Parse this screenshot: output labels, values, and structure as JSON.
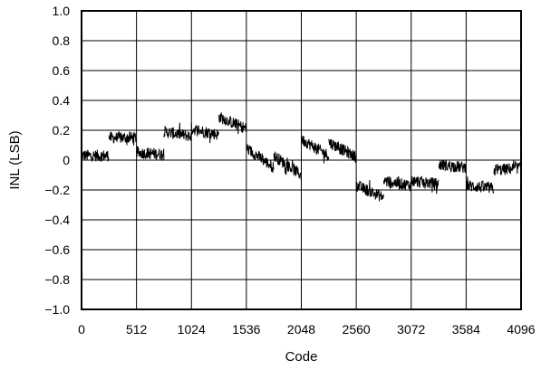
{
  "chart_data": {
    "type": "line",
    "xlabel": "Code",
    "ylabel": "INL (LSB)",
    "xlim": [
      0,
      4096
    ],
    "ylim": [
      -1.0,
      1.0
    ],
    "x_ticks": [
      0,
      512,
      1024,
      1536,
      2048,
      2560,
      3072,
      3584,
      4096
    ],
    "x_tick_labels": [
      "0",
      "512",
      "1024",
      "1536",
      "2048",
      "2560",
      "3072",
      "3584",
      "4096"
    ],
    "y_ticks": [
      1.0,
      0.8,
      0.6,
      0.4,
      0.2,
      0,
      -0.2,
      -0.4,
      -0.6,
      -0.8,
      -1.0
    ],
    "y_tick_labels": [
      "1.0",
      "0.8",
      "0.6",
      "0.4",
      "0.2",
      "0",
      "−0.2",
      "−0.4",
      "−0.6",
      "−0.8",
      "−1.0"
    ],
    "grid": true,
    "line_color": "#000000",
    "noise_amplitude": 0.04,
    "segments": [
      {
        "x0": 0,
        "x1": 256,
        "y0": 0.03,
        "y1": 0.03
      },
      {
        "x0": 256,
        "x1": 512,
        "y0": 0.15,
        "y1": 0.15
      },
      {
        "x0": 512,
        "x1": 768,
        "y0": 0.05,
        "y1": 0.04
      },
      {
        "x0": 768,
        "x1": 1024,
        "y0": 0.19,
        "y1": 0.16
      },
      {
        "x0": 1024,
        "x1": 1280,
        "y0": 0.21,
        "y1": 0.17
      },
      {
        "x0": 1280,
        "x1": 1536,
        "y0": 0.29,
        "y1": 0.21
      },
      {
        "x0": 1536,
        "x1": 1792,
        "y0": 0.08,
        "y1": -0.05
      },
      {
        "x0": 1792,
        "x1": 2048,
        "y0": 0.03,
        "y1": -0.1
      },
      {
        "x0": 2048,
        "x1": 2304,
        "y0": 0.14,
        "y1": 0.03
      },
      {
        "x0": 2304,
        "x1": 2560,
        "y0": 0.12,
        "y1": 0.02
      },
      {
        "x0": 2560,
        "x1": 2816,
        "y0": -0.17,
        "y1": -0.25
      },
      {
        "x0": 2816,
        "x1": 3072,
        "y0": -0.14,
        "y1": -0.17
      },
      {
        "x0": 3072,
        "x1": 3328,
        "y0": -0.14,
        "y1": -0.16
      },
      {
        "x0": 3328,
        "x1": 3584,
        "y0": -0.03,
        "y1": -0.05
      },
      {
        "x0": 3584,
        "x1": 3840,
        "y0": -0.17,
        "y1": -0.19
      },
      {
        "x0": 3840,
        "x1": 4096,
        "y0": -0.07,
        "y1": -0.05
      }
    ]
  }
}
